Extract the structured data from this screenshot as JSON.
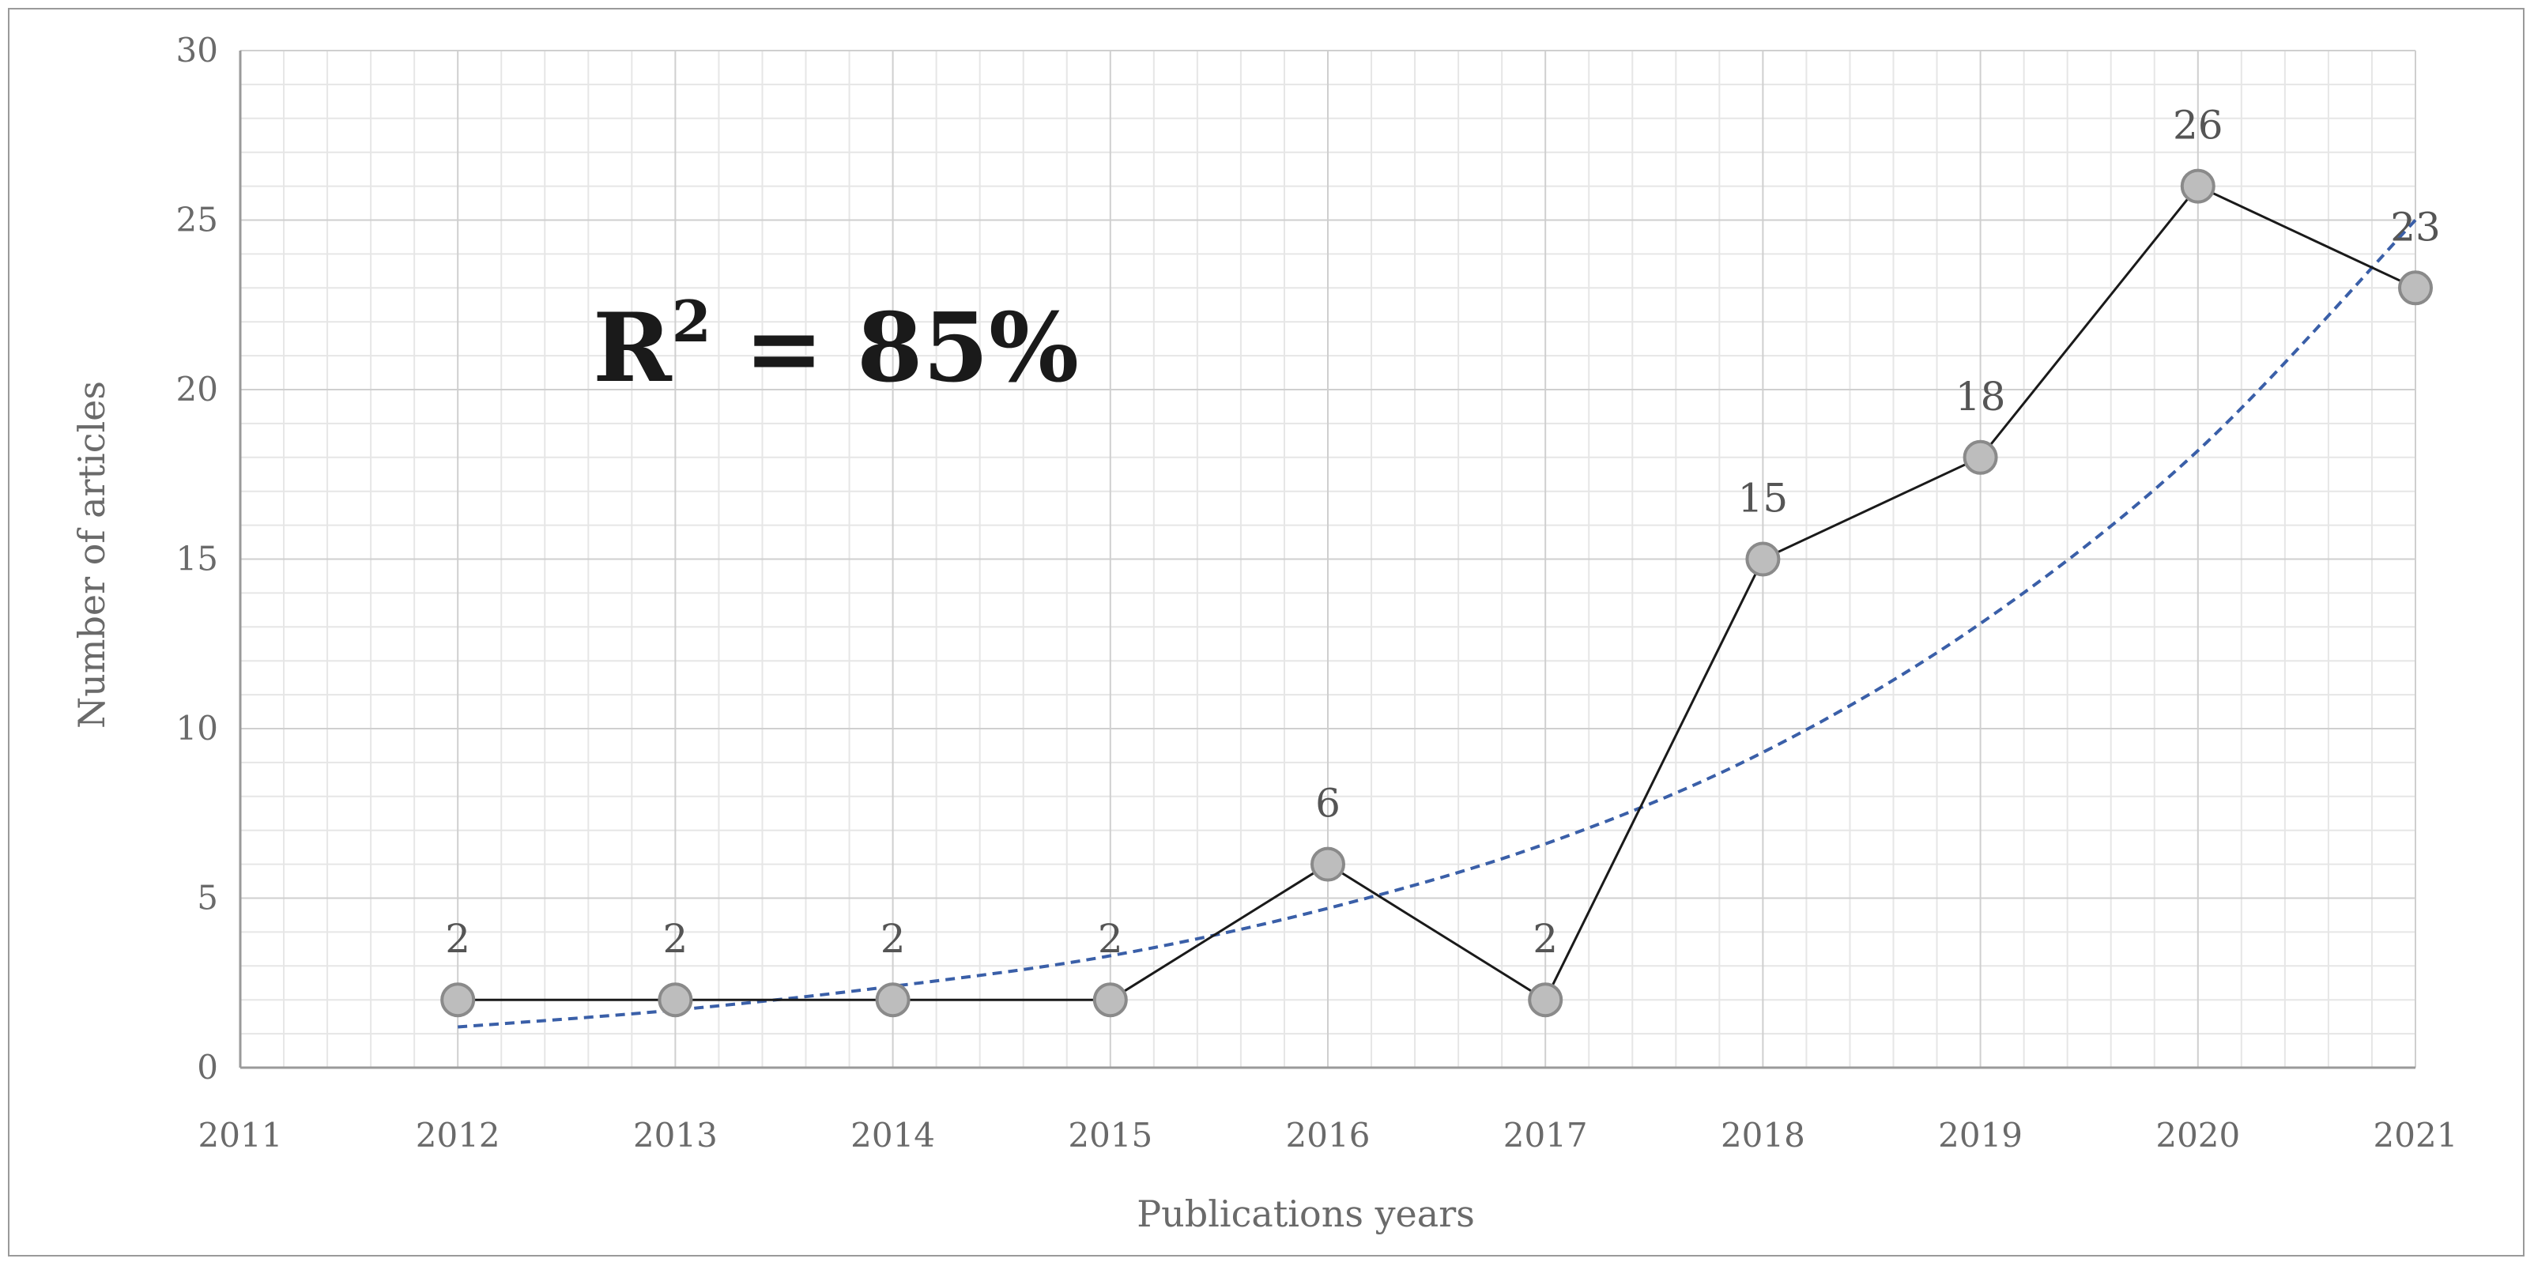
{
  "chart_data": {
    "type": "line",
    "xlabel": "Publications years",
    "ylabel": "Number of articles",
    "xlim": [
      2011,
      2021
    ],
    "ylim": [
      0,
      30
    ],
    "x_ticks": [
      "2011",
      "2012",
      "2013",
      "2014",
      "2015",
      "2016",
      "2017",
      "2018",
      "2019",
      "2020",
      "2021"
    ],
    "y_ticks": [
      "0",
      "5",
      "10",
      "15",
      "20",
      "25",
      "30"
    ],
    "grid": true,
    "legend": "none",
    "series": [
      {
        "x": [
          2012,
          2013,
          2014,
          2015,
          2016,
          2017,
          2018,
          2019,
          2020,
          2021
        ],
        "values": [
          2,
          2,
          2,
          2,
          6,
          2,
          15,
          18,
          26,
          23
        ],
        "data_labels": [
          "2",
          "2",
          "2",
          "2",
          "6",
          "2",
          "15",
          "18",
          "26",
          "23"
        ],
        "color": "#1a1a1a",
        "marker_color": "#bdbdbd"
      }
    ],
    "trendline": {
      "kind": "exponential",
      "style": "dashed",
      "color": "#3a5fa8",
      "x": [
        2012,
        2013,
        2014,
        2015,
        2016,
        2017,
        2018,
        2019,
        2020,
        2021
      ],
      "values": [
        1.2,
        1.7,
        2.4,
        3.3,
        4.7,
        6.6,
        9.3,
        13.1,
        18.2,
        25.0
      ]
    },
    "annotation": {
      "base": "R",
      "superscript": "2",
      "rest": " = 85%"
    }
  }
}
